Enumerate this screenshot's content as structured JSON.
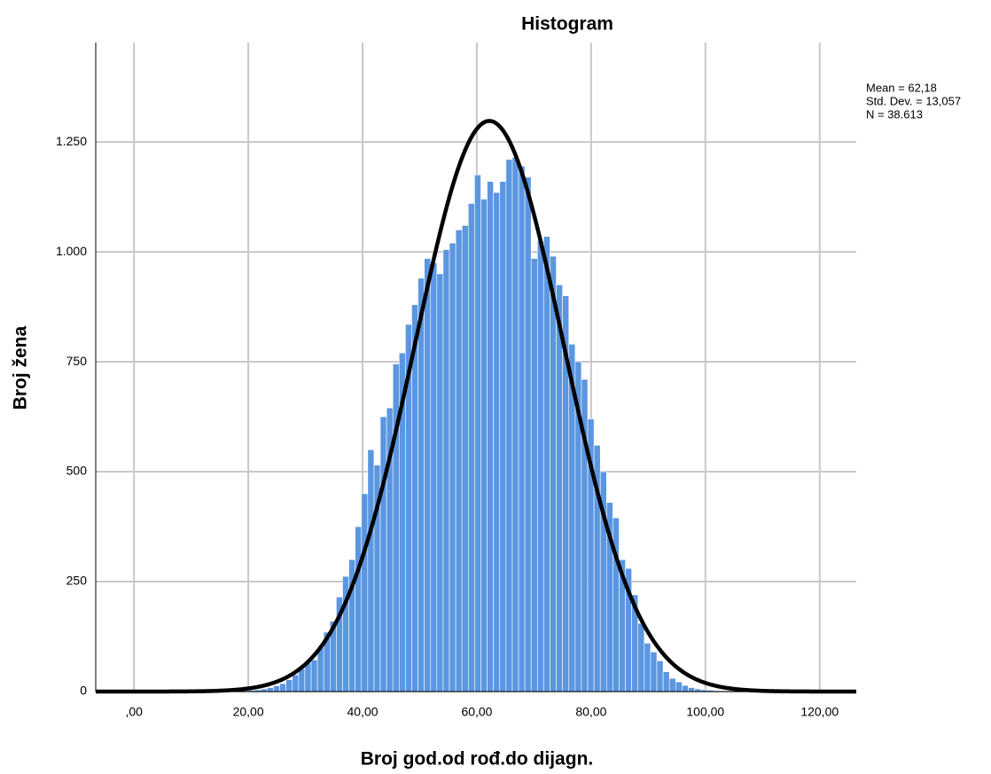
{
  "chart_data": {
    "type": "histogram",
    "title": "Histogram",
    "x_label": "Broj god.od rođ.do dijagn.",
    "y_label": "Broj žena",
    "bins": [
      20,
      21.1,
      22.2,
      23.3,
      24.4,
      25.5,
      26.6,
      27.7,
      28.8,
      29.9,
      31,
      32.1,
      33.2,
      34.3,
      35.4,
      36.5,
      37.6,
      38.7,
      39.8,
      40.9,
      42,
      43.1,
      44.2,
      45.3,
      46.4,
      47.5,
      48.6,
      49.7,
      50.8,
      51.9,
      53,
      54.1,
      55.2,
      56.3,
      57.4,
      58.5,
      59.6,
      60.7,
      61.8,
      62.9,
      64,
      65.1,
      66.2,
      67.3,
      68.4,
      69.5,
      70.6,
      71.7,
      72.8,
      73.9,
      75,
      76.1,
      77.2,
      78.3,
      79.4,
      80.5,
      81.6,
      82.7,
      83.8,
      84.9,
      86,
      87.1,
      88.2,
      89.3,
      90.4,
      91.5,
      92.6,
      93.7,
      94.8,
      95.9,
      97,
      98.1,
      99.2,
      100.3,
      101.4,
      102.5,
      103.6
    ],
    "counts": [
      3,
      4,
      6,
      9,
      13,
      18,
      27,
      38,
      52,
      66,
      72,
      100,
      135,
      160,
      215,
      262,
      300,
      375,
      450,
      550,
      515,
      625,
      645,
      745,
      770,
      835,
      880,
      940,
      985,
      975,
      950,
      1005,
      1020,
      1050,
      1060,
      1110,
      1175,
      1120,
      1160,
      1135,
      1160,
      1210,
      1215,
      1195,
      1170,
      985,
      1025,
      1035,
      990,
      925,
      900,
      790,
      750,
      710,
      620,
      560,
      500,
      430,
      395,
      300,
      280,
      220,
      155,
      110,
      90,
      70,
      45,
      30,
      22,
      14,
      9,
      6,
      4,
      3,
      2,
      1
    ],
    "color": "#5b96e0",
    "normal_curve": {
      "mean": 62.18,
      "std": 13.057,
      "n": 38613,
      "color": "#000000"
    },
    "stats_text": [
      "Mean = 62,18",
      "Std. Dev. = 13,057",
      "N = 38.613"
    ],
    "xlim": [
      -6.7,
      126.4
    ],
    "ylim": [
      0,
      1476
    ],
    "xticks": [
      {
        "value": 0,
        "label": ",00"
      },
      {
        "value": 20,
        "label": "20,00"
      },
      {
        "value": 40,
        "label": "40,00"
      },
      {
        "value": 60,
        "label": "60,00"
      },
      {
        "value": 80,
        "label": "80,00"
      },
      {
        "value": 100,
        "label": "100,00"
      },
      {
        "value": 120,
        "label": "120,00"
      }
    ],
    "yticks": [
      0,
      250,
      500,
      750,
      {
        "value": 1000,
        "label": "1.000"
      },
      {
        "value": 1250,
        "label": "1.250"
      }
    ],
    "grid": true
  }
}
